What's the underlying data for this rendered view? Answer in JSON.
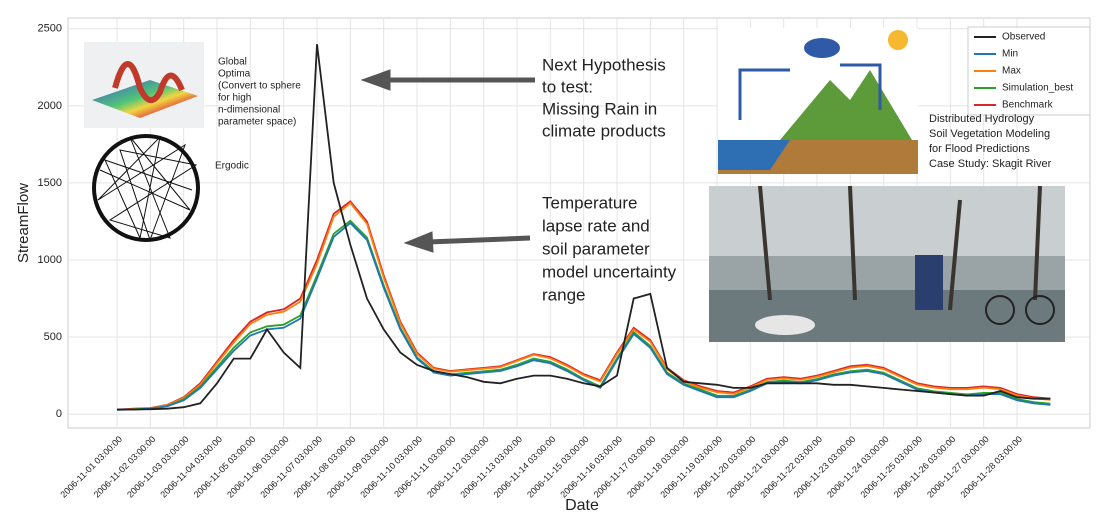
{
  "chart_data": {
    "type": "line",
    "y_label": "StreamFlow",
    "x_label": "Date",
    "categories": [
      "2006-11-01 03:00:00",
      null,
      "2006-11-02 03:00:00",
      null,
      "2006-11-03 03:00:00",
      null,
      "2006-11-04 03:00:00",
      null,
      "2006-11-05 03:00:00",
      null,
      "2006-11-06 03:00:00",
      null,
      "2006-11-07 03:00:00",
      null,
      "2006-11-08 03:00:00",
      null,
      "2006-11-09 03:00:00",
      null,
      "2006-11-10 03:00:00",
      null,
      "2006-11-11 03:00:00",
      null,
      "2006-11-12 03:00:00",
      null,
      "2006-11-13 03:00:00",
      null,
      "2006-11-14 03:00:00",
      null,
      "2006-11-15 03:00:00",
      null,
      "2006-11-16 03:00:00",
      null,
      "2006-11-17 03:00:00",
      null,
      "2006-11-18 03:00:00",
      null,
      "2006-11-19 03:00:00",
      null,
      "2006-11-20 03:00:00",
      null,
      "2006-11-21 03:00:00",
      null,
      "2006-11-22 03:00:00",
      null,
      "2006-11-23 03:00:00",
      null,
      "2006-11-24 03:00:00",
      null,
      "2006-11-25 03:00:00",
      null,
      "2006-11-26 03:00:00",
      null,
      "2006-11-27 03:00:00",
      null,
      "2006-11-28 03:00:00",
      null,
      null
    ],
    "series": [
      {
        "name": "Benchmark",
        "color": "#d62728",
        "values": [
          30,
          35,
          40,
          60,
          110,
          200,
          340,
          480,
          600,
          660,
          680,
          750,
          1000,
          1300,
          1380,
          1250,
          900,
          600,
          400,
          300,
          280,
          290,
          300,
          310,
          350,
          390,
          370,
          320,
          260,
          220,
          400,
          560,
          480,
          300,
          220,
          180,
          150,
          140,
          180,
          230,
          240,
          230,
          250,
          280,
          310,
          320,
          300,
          250,
          200,
          180,
          170,
          170,
          180,
          170,
          130,
          110,
          100
        ]
      },
      {
        "name": "Max",
        "color": "#ff7f0e",
        "values": [
          29,
          33,
          38,
          57,
          105,
          190,
          330,
          465,
          585,
          645,
          665,
          730,
          975,
          1280,
          1370,
          1235,
          885,
          590,
          390,
          295,
          275,
          285,
          295,
          305,
          345,
          385,
          362,
          312,
          252,
          212,
          390,
          550,
          470,
          292,
          212,
          172,
          142,
          132,
          172,
          222,
          232,
          222,
          242,
          272,
          302,
          312,
          292,
          242,
          192,
          172,
          162,
          162,
          172,
          162,
          122,
          102,
          92
        ]
      },
      {
        "name": "Simulation_best",
        "color": "#2ca02c",
        "values": [
          28,
          31,
          36,
          52,
          95,
          178,
          305,
          430,
          530,
          570,
          580,
          640,
          900,
          1170,
          1255,
          1145,
          835,
          560,
          368,
          278,
          258,
          268,
          278,
          288,
          320,
          360,
          340,
          290,
          228,
          180,
          362,
          532,
          442,
          270,
          198,
          160,
          120,
          118,
          158,
          208,
          218,
          208,
          228,
          258,
          278,
          288,
          268,
          218,
          168,
          148,
          138,
          128,
          138,
          138,
          98,
          78,
          68
        ]
      },
      {
        "name": "Min",
        "color": "#1f77b4",
        "values": [
          28,
          30,
          35,
          50,
          90,
          170,
          290,
          410,
          510,
          550,
          560,
          620,
          880,
          1150,
          1240,
          1130,
          820,
          550,
          360,
          270,
          250,
          260,
          270,
          280,
          310,
          350,
          330,
          280,
          220,
          170,
          350,
          520,
          430,
          260,
          190,
          150,
          110,
          110,
          150,
          200,
          210,
          200,
          220,
          250,
          270,
          280,
          260,
          210,
          160,
          140,
          130,
          120,
          130,
          130,
          90,
          70,
          60
        ]
      },
      {
        "name": "Observed",
        "color": "#222222",
        "values": [
          30,
          30,
          32,
          35,
          45,
          70,
          200,
          360,
          360,
          550,
          400,
          300,
          2400,
          1500,
          1100,
          750,
          550,
          400,
          320,
          280,
          260,
          240,
          210,
          200,
          230,
          250,
          250,
          230,
          200,
          180,
          250,
          750,
          780,
          300,
          210,
          200,
          190,
          170,
          170,
          200,
          200,
          200,
          200,
          190,
          190,
          180,
          170,
          160,
          150,
          140,
          130,
          120,
          120,
          150,
          110,
          100,
          100
        ]
      }
    ],
    "ylim": [
      -90,
      2570
    ],
    "yticks": [
      0,
      500,
      1000,
      1500,
      2000,
      2500
    ],
    "grid": true,
    "annotations": [
      {
        "lines": [
          "Global",
          "Optima",
          "(Convert to sphere",
          "for high",
          "n-dimensional",
          "parameter space)"
        ]
      },
      {
        "lines": [
          "Ergodic"
        ]
      },
      {
        "lines": [
          "Next Hypothesis",
          "to test:",
          "Missing Rain in",
          "climate products"
        ]
      },
      {
        "lines": [
          "Temperature",
          "lapse rate and",
          "soil parameter",
          "model uncertainty",
          "range"
        ]
      },
      {
        "lines": [
          "Distributed Hydrology",
          "Soil Vegetation Modeling",
          "for Flood Predictions",
          "Case Study: Skagit River"
        ]
      }
    ]
  }
}
